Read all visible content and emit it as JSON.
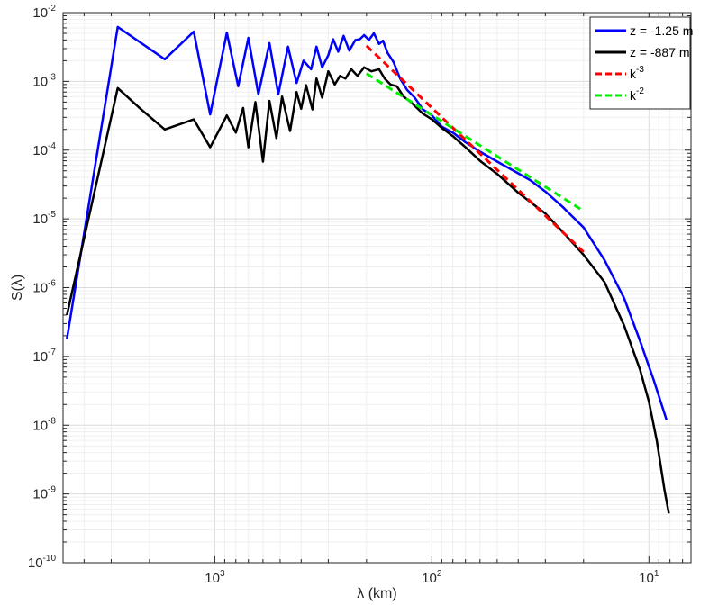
{
  "chart_data": {
    "type": "line",
    "xscale": "log",
    "yscale": "log",
    "x_reversed": true,
    "xlim": [
      5000,
      6.4
    ],
    "ylim": [
      1e-10,
      0.01
    ],
    "grid": true,
    "minor_grid": true,
    "legend_position": "top-right",
    "xlabel": "λ (km)",
    "ylabel": "S(λ)",
    "x_ticks": [
      {
        "base": "10",
        "exp": "3"
      },
      {
        "base": "10",
        "exp": "2"
      },
      {
        "base": "10",
        "exp": "1"
      }
    ],
    "y_ticks": [
      {
        "base": "10",
        "exp": "-2"
      },
      {
        "base": "10",
        "exp": "-3"
      },
      {
        "base": "10",
        "exp": "-4"
      },
      {
        "base": "10",
        "exp": "-5"
      },
      {
        "base": "10",
        "exp": "-6"
      },
      {
        "base": "10",
        "exp": "-7"
      },
      {
        "base": "10",
        "exp": "-8"
      },
      {
        "base": "10",
        "exp": "-9"
      },
      {
        "base": "10",
        "exp": "-10"
      }
    ],
    "series": [
      {
        "name": "z = -1.25 m",
        "color": "#0000ff",
        "style": "solid",
        "points": [
          [
            4800,
            1.8e-07
          ],
          [
            2800,
            0.0062
          ],
          [
            1700,
            0.0021
          ],
          [
            1250,
            0.0053
          ],
          [
            1050,
            0.00033
          ],
          [
            880,
            0.0051
          ],
          [
            780,
            0.00085
          ],
          [
            700,
            0.0043
          ],
          [
            630,
            0.00065
          ],
          [
            560,
            0.0036
          ],
          [
            510,
            0.00065
          ],
          [
            460,
            0.0032
          ],
          [
            420,
            0.00095
          ],
          [
            390,
            0.002
          ],
          [
            360,
            0.0015
          ],
          [
            340,
            0.0032
          ],
          [
            320,
            0.0016
          ],
          [
            300,
            0.0024
          ],
          [
            285,
            0.0041
          ],
          [
            270,
            0.0027
          ],
          [
            255,
            0.0046
          ],
          [
            240,
            0.0028
          ],
          [
            225,
            0.004
          ],
          [
            215,
            0.0041
          ],
          [
            205,
            0.0047
          ],
          [
            195,
            0.004
          ],
          [
            185,
            0.005
          ],
          [
            175,
            0.0035
          ],
          [
            168,
            0.0039
          ],
          [
            160,
            0.0026
          ],
          [
            150,
            0.0019
          ],
          [
            140,
            0.0011
          ],
          [
            130,
            0.00075
          ],
          [
            120,
            0.00058
          ],
          [
            110,
            0.00039
          ],
          [
            100,
            0.00032
          ],
          [
            90,
            0.00022
          ],
          [
            80,
            0.00018
          ],
          [
            70,
            0.00013
          ],
          [
            60,
            9.5e-05
          ],
          [
            50,
            6.8e-05
          ],
          [
            40,
            4.6e-05
          ],
          [
            35,
            3.6e-05
          ],
          [
            30,
            2.5e-05
          ],
          [
            25,
            1.5e-05
          ],
          [
            20,
            7.5e-06
          ],
          [
            16,
            2.5e-06
          ],
          [
            13,
            7e-07
          ],
          [
            11,
            1.7e-07
          ],
          [
            9.5,
            4.5e-08
          ],
          [
            8.3,
            1.2e-08
          ]
        ]
      },
      {
        "name": "z =  -887 m",
        "color": "#000000",
        "style": "solid",
        "points": [
          [
            4800,
            4e-07
          ],
          [
            2800,
            0.0008
          ],
          [
            2200,
            0.0004
          ],
          [
            1700,
            0.0002
          ],
          [
            1250,
            0.00028
          ],
          [
            1050,
            0.00011
          ],
          [
            880,
            0.00032
          ],
          [
            800,
            0.00018
          ],
          [
            740,
            0.00041
          ],
          [
            700,
            0.00011
          ],
          [
            650,
            0.0005
          ],
          [
            600,
            6.8e-05
          ],
          [
            560,
            0.00052
          ],
          [
            520,
            0.00015
          ],
          [
            490,
            0.0006
          ],
          [
            450,
            0.00019
          ],
          [
            420,
            0.0007
          ],
          [
            400,
            0.0004
          ],
          [
            380,
            0.00088
          ],
          [
            355,
            0.00039
          ],
          [
            340,
            0.0011
          ],
          [
            320,
            0.00058
          ],
          [
            300,
            0.0014
          ],
          [
            280,
            0.0009
          ],
          [
            265,
            0.0012
          ],
          [
            250,
            0.0011
          ],
          [
            235,
            0.0015
          ],
          [
            220,
            0.0012
          ],
          [
            205,
            0.0016
          ],
          [
            190,
            0.0014
          ],
          [
            175,
            0.0015
          ],
          [
            165,
            0.0011
          ],
          [
            155,
            0.0009
          ],
          [
            145,
            0.00085
          ],
          [
            135,
            0.0006
          ],
          [
            125,
            0.0005
          ],
          [
            110,
            0.00034
          ],
          [
            100,
            0.00028
          ],
          [
            90,
            0.00021
          ],
          [
            80,
            0.00016
          ],
          [
            70,
            0.00011
          ],
          [
            60,
            7e-05
          ],
          [
            50,
            4.5e-05
          ],
          [
            40,
            2.4e-05
          ],
          [
            30,
            1.2e-05
          ],
          [
            25,
            6.5e-06
          ],
          [
            20,
            3e-06
          ],
          [
            16,
            1.2e-06
          ],
          [
            13,
            2.8e-07
          ],
          [
            11,
            6.5e-08
          ],
          [
            10,
            2.2e-08
          ],
          [
            9.2,
            6e-09
          ],
          [
            8.5,
            1.2e-09
          ],
          [
            8.1,
            5.2e-10
          ]
        ]
      },
      {
        "name": "k-3",
        "color": "#ff0000",
        "style": "dashed",
        "points": [
          [
            200,
            0.0033
          ],
          [
            20,
            3.3e-06
          ]
        ]
      },
      {
        "name": "k-2",
        "color": "#00ee00",
        "style": "dashed",
        "points": [
          [
            200,
            0.0013
          ],
          [
            20,
            1.3e-05
          ]
        ]
      }
    ],
    "legend": [
      {
        "label": "z = -1.25 m",
        "sup": "",
        "color": "#0000ff",
        "style": "solid"
      },
      {
        "label": "z =  -887 m",
        "sup": "",
        "color": "#000000",
        "style": "solid"
      },
      {
        "label": "k",
        "sup": "-3",
        "color": "#ff0000",
        "style": "dashed"
      },
      {
        "label": "k",
        "sup": "-2",
        "color": "#00ee00",
        "style": "dashed"
      }
    ]
  }
}
